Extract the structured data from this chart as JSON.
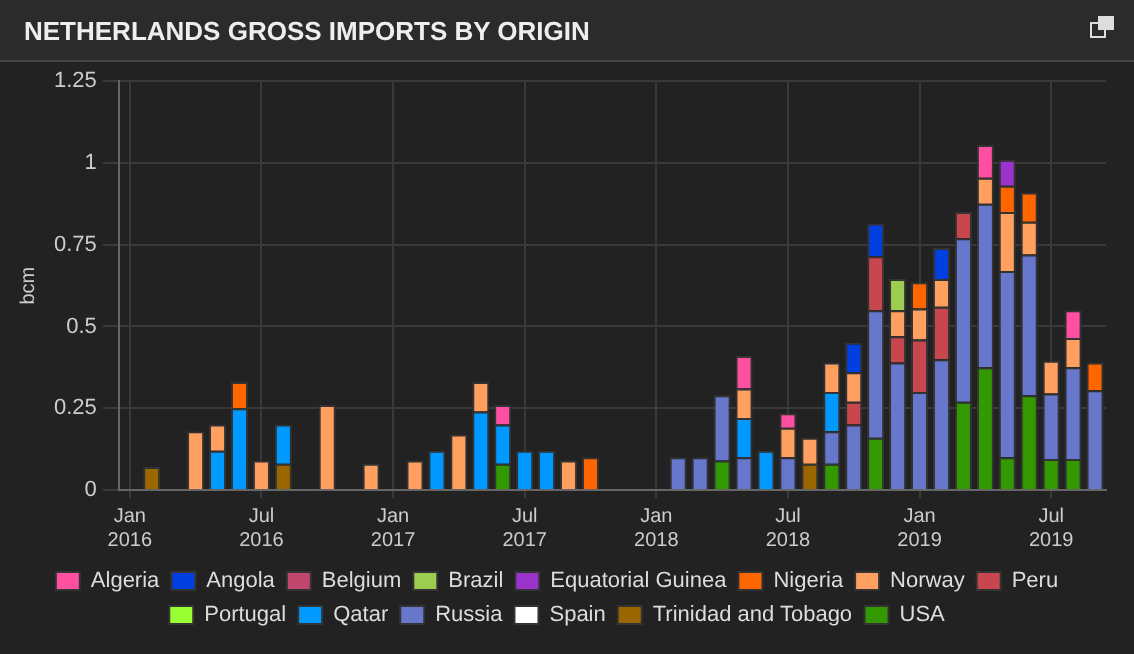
{
  "chart_data": {
    "type": "bar",
    "title": "NETHERLANDS GROSS IMPORTS BY ORIGIN",
    "ylabel": "bcm",
    "stacked": true,
    "grid": true,
    "legend": "bottom",
    "categories": [
      "Jan 2016",
      null,
      null,
      null,
      null,
      null,
      "Jul 2016",
      null,
      null,
      null,
      null,
      null,
      "Jan 2017",
      null,
      null,
      null,
      null,
      null,
      "Jul 2017",
      null,
      null,
      null,
      null,
      null,
      "Jan 2018",
      null,
      null,
      null,
      null,
      null,
      "Jul 2018",
      null,
      null,
      null,
      null,
      null,
      "Jan 2019",
      null,
      null,
      null,
      null,
      null,
      "Jul 2019",
      null,
      null
    ],
    "ylim": [
      0,
      1.25
    ],
    "yticks": [
      0,
      0.25,
      0.5,
      0.75,
      1,
      1.25
    ],
    "series": [
      {
        "name": "USA",
        "color": "#339900",
        "values": [
          null,
          null,
          null,
          null,
          null,
          null,
          null,
          null,
          null,
          null,
          null,
          null,
          null,
          null,
          null,
          null,
          null,
          0.08,
          null,
          null,
          null,
          null,
          null,
          null,
          null,
          null,
          null,
          0.09,
          null,
          null,
          null,
          null,
          0.08,
          null,
          0.16,
          null,
          null,
          null,
          0.27,
          0.375,
          0.1,
          0.29,
          0.095,
          0.095,
          null
        ]
      },
      {
        "name": "Trinidad and Tobago",
        "color": "#996600",
        "values": [
          null,
          0.07,
          null,
          null,
          null,
          null,
          null,
          0.08,
          null,
          null,
          null,
          null,
          null,
          null,
          null,
          null,
          null,
          null,
          null,
          null,
          null,
          null,
          null,
          null,
          null,
          null,
          null,
          null,
          null,
          null,
          null,
          0.08,
          null,
          null,
          null,
          null,
          null,
          null,
          null,
          null,
          null,
          null,
          null,
          null,
          null
        ]
      },
      {
        "name": "Spain",
        "color": "#ffffff",
        "values": [
          null,
          null,
          null,
          null,
          null,
          null,
          null,
          null,
          null,
          null,
          null,
          null,
          null,
          null,
          null,
          null,
          null,
          null,
          null,
          null,
          null,
          null,
          null,
          null,
          null,
          null,
          null,
          null,
          null,
          null,
          null,
          null,
          null,
          null,
          null,
          null,
          null,
          null,
          null,
          null,
          null,
          null,
          null,
          null,
          null
        ]
      },
      {
        "name": "Russia",
        "color": "#6677cc",
        "values": [
          null,
          null,
          null,
          null,
          null,
          null,
          null,
          null,
          null,
          null,
          null,
          null,
          null,
          null,
          null,
          null,
          null,
          null,
          null,
          null,
          null,
          null,
          null,
          null,
          null,
          0.1,
          0.1,
          0.2,
          0.1,
          null,
          0.1,
          null,
          0.1,
          0.2,
          0.39,
          0.39,
          0.3,
          0.4,
          0.5,
          0.5,
          0.57,
          0.43,
          0.2,
          0.28,
          0.305
        ]
      },
      {
        "name": "Qatar",
        "color": "#0099ff",
        "values": [
          null,
          null,
          null,
          null,
          0.12,
          0.25,
          null,
          0.12,
          null,
          null,
          null,
          null,
          null,
          null,
          0.12,
          null,
          0.24,
          0.12,
          0.12,
          0.12,
          null,
          null,
          null,
          null,
          null,
          null,
          null,
          null,
          0.12,
          0.12,
          null,
          null,
          0.12,
          null,
          null,
          null,
          null,
          null,
          null,
          null,
          null,
          null,
          null,
          null,
          null
        ]
      },
      {
        "name": "Portugal",
        "color": "#99ff33",
        "values": [
          null,
          null,
          null,
          null,
          null,
          null,
          null,
          null,
          null,
          null,
          null,
          null,
          null,
          null,
          null,
          null,
          null,
          null,
          null,
          null,
          null,
          null,
          null,
          null,
          null,
          null,
          null,
          null,
          null,
          null,
          null,
          null,
          null,
          null,
          null,
          null,
          null,
          null,
          null,
          null,
          null,
          null,
          null,
          null,
          null
        ]
      },
      {
        "name": "Peru",
        "color": "#c8464e",
        "values": [
          null,
          null,
          null,
          null,
          null,
          null,
          null,
          null,
          null,
          null,
          null,
          null,
          null,
          null,
          null,
          null,
          null,
          null,
          null,
          null,
          null,
          null,
          null,
          null,
          null,
          null,
          null,
          null,
          null,
          null,
          null,
          null,
          null,
          0.07,
          0.165,
          0.08,
          0.16,
          0.16,
          0.08,
          null,
          null,
          null,
          null,
          null,
          null
        ]
      },
      {
        "name": "Norway",
        "color": "#ffa060",
        "values": [
          null,
          null,
          null,
          0.18,
          0.08,
          null,
          0.09,
          null,
          null,
          0.26,
          null,
          0.08,
          null,
          0.09,
          null,
          0.17,
          0.09,
          null,
          null,
          null,
          0.09,
          null,
          null,
          null,
          null,
          null,
          null,
          null,
          0.09,
          null,
          0.09,
          0.08,
          0.09,
          0.09,
          null,
          0.08,
          0.095,
          0.085,
          null,
          0.08,
          0.18,
          0.1,
          0.1,
          0.09,
          null
        ]
      },
      {
        "name": "Nigeria",
        "color": "#ff6600",
        "values": [
          null,
          null,
          null,
          null,
          null,
          0.08,
          null,
          null,
          null,
          null,
          null,
          null,
          null,
          null,
          null,
          null,
          null,
          null,
          null,
          null,
          null,
          0.1,
          null,
          null,
          null,
          null,
          null,
          null,
          null,
          null,
          null,
          null,
          null,
          null,
          null,
          null,
          0.08,
          null,
          null,
          null,
          0.08,
          0.09,
          null,
          null,
          0.085
        ]
      },
      {
        "name": "Equatorial Guinea",
        "color": "#9933cc",
        "values": [
          null,
          null,
          null,
          null,
          null,
          null,
          null,
          null,
          null,
          null,
          null,
          null,
          null,
          null,
          null,
          null,
          null,
          null,
          null,
          null,
          null,
          null,
          null,
          null,
          null,
          null,
          null,
          null,
          null,
          null,
          null,
          null,
          null,
          null,
          null,
          null,
          null,
          null,
          null,
          null,
          0.08,
          null,
          null,
          null,
          null
        ]
      },
      {
        "name": "Brazil",
        "color": "#9ccc50",
        "values": [
          null,
          null,
          null,
          null,
          null,
          null,
          null,
          null,
          null,
          null,
          null,
          null,
          null,
          null,
          null,
          null,
          null,
          null,
          null,
          null,
          null,
          null,
          null,
          null,
          null,
          null,
          null,
          null,
          null,
          null,
          null,
          null,
          null,
          null,
          null,
          0.095,
          null,
          null,
          null,
          null,
          null,
          null,
          null,
          null,
          null
        ]
      },
      {
        "name": "Belgium",
        "color": "#c0466e",
        "values": [
          null,
          null,
          null,
          null,
          null,
          null,
          null,
          null,
          null,
          null,
          null,
          null,
          null,
          null,
          null,
          null,
          null,
          null,
          null,
          null,
          null,
          null,
          null,
          null,
          null,
          null,
          null,
          null,
          null,
          null,
          null,
          null,
          null,
          null,
          null,
          null,
          null,
          null,
          null,
          null,
          null,
          null,
          null,
          null,
          null
        ]
      },
      {
        "name": "Angola",
        "color": "#0040e0",
        "values": [
          null,
          null,
          null,
          null,
          null,
          null,
          null,
          null,
          null,
          null,
          null,
          null,
          null,
          null,
          null,
          null,
          null,
          null,
          null,
          null,
          null,
          null,
          null,
          null,
          null,
          null,
          null,
          null,
          null,
          null,
          null,
          null,
          null,
          0.09,
          0.1,
          null,
          null,
          0.095,
          null,
          null,
          null,
          null,
          null,
          null,
          null
        ]
      },
      {
        "name": "Algeria",
        "color": "#ff4fa0",
        "values": [
          null,
          null,
          null,
          null,
          null,
          null,
          null,
          null,
          null,
          null,
          null,
          null,
          null,
          null,
          null,
          null,
          null,
          0.06,
          null,
          null,
          null,
          null,
          null,
          null,
          null,
          null,
          null,
          null,
          0.1,
          null,
          0.045,
          null,
          null,
          null,
          null,
          null,
          null,
          null,
          null,
          0.1,
          null,
          null,
          null,
          0.085,
          null
        ]
      }
    ]
  }
}
